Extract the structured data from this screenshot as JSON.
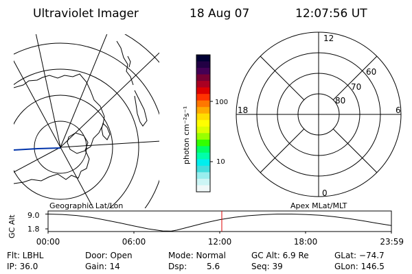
{
  "header": {
    "title": "Ultraviolet Imager",
    "date": "18 Aug 07",
    "time": "12:07:56 UT"
  },
  "colors": {
    "ink": "#000000",
    "meridian": "#0033aa",
    "time_marker": "#dd0000"
  },
  "colorbar": {
    "label": "photon cm⁻²s⁻¹",
    "ticks": [
      "100",
      "10"
    ],
    "colors": [
      "#000033",
      "#220044",
      "#440055",
      "#770033",
      "#aa0022",
      "#dd0000",
      "#ff3300",
      "#ff7700",
      "#ffaa00",
      "#ffdd00",
      "#ffff00",
      "#ddff00",
      "#99ff00",
      "#33ff00",
      "#00ff66",
      "#00ffaa",
      "#00eeee",
      "#44dddd",
      "#99eeee",
      "#ccf5f5",
      "#f0f8f8"
    ]
  },
  "polar_plot": {
    "labels": {
      "top": "12",
      "bottom": "0",
      "left": "18",
      "right": "6"
    },
    "ring_labels": [
      "80",
      "70",
      "60"
    ]
  },
  "altitude_plot": {
    "left_label": "Geographic Lat/Lon",
    "right_label": "Apex MLat/MLT",
    "y_axis_label": "GC Alt",
    "y_ticks": [
      "9.0",
      "1.8"
    ],
    "x_ticks": [
      "00:00",
      "06:00",
      "12:00",
      "18:00",
      "23:59"
    ]
  },
  "chart_data": {
    "type": "line",
    "xlabel": "",
    "ylabel": "GC Alt",
    "x_ticks": [
      "00:00",
      "06:00",
      "12:00",
      "18:00",
      "23:59"
    ],
    "y_ticks": [
      1.8,
      9.0
    ],
    "ylim": [
      0.5,
      10.5
    ],
    "grid": false,
    "marker_time": "12:07:56",
    "series": [
      {
        "x": [
          0,
          1,
          2,
          3,
          4,
          5,
          6,
          7,
          8,
          8.6,
          9,
          10,
          11,
          12,
          13,
          14,
          15,
          16,
          17,
          18,
          19,
          20,
          21,
          22,
          23,
          23.98
        ],
        "y": [
          9.0,
          8.8,
          8.3,
          7.4,
          6.1,
          4.7,
          3.2,
          1.8,
          0.8,
          0.7,
          1.2,
          3.0,
          4.8,
          6.3,
          7.4,
          8.2,
          8.7,
          9.0,
          9.0,
          8.8,
          8.4,
          7.7,
          6.8,
          5.7,
          4.5,
          3.4
        ]
      }
    ]
  },
  "status": {
    "filter": "Flt: LBHL",
    "ip": "IP: 36.0",
    "door": "Door: Open",
    "gain": "Gain: 14",
    "mode": "Mode: Normal",
    "dsp_label": "Dsp:",
    "dsp_value": "5.6",
    "gc_alt": "GC Alt: 6.9 Re",
    "seq": "Seq: 39",
    "glat": "GLat: −74.7",
    "glon": "GLon: 146.5"
  }
}
